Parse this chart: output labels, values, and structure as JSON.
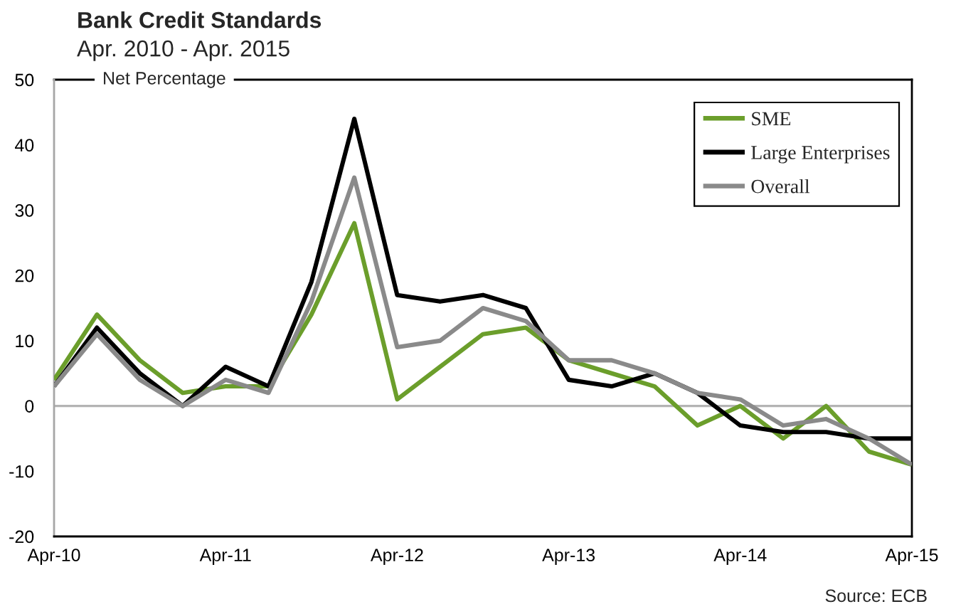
{
  "chart_data": {
    "type": "line",
    "title": "Bank Credit Standards",
    "subtitle": "Apr. 2010 - Apr. 2015",
    "ylabel": "Net Percentage",
    "annotations": [
      "Source: ECB"
    ],
    "categories": [
      "Apr-10",
      null,
      null,
      null,
      "Apr-11",
      null,
      null,
      null,
      "Apr-12",
      null,
      null,
      null,
      "Apr-13",
      null,
      null,
      null,
      "Apr-14",
      null,
      null,
      null,
      "Apr-15"
    ],
    "series": [
      {
        "name": "SME",
        "color": "#6b9e2b",
        "values": [
          4,
          14,
          7,
          2,
          3,
          3,
          14,
          28,
          1,
          6,
          11,
          12,
          7,
          5,
          3,
          -3,
          0,
          -5,
          0,
          -7,
          -9
        ]
      },
      {
        "name": "Large Enterprises",
        "color": "#000000",
        "values": [
          3,
          12,
          5,
          0,
          6,
          3,
          19,
          44,
          17,
          16,
          17,
          15,
          4,
          3,
          5,
          2,
          -3,
          -4,
          -4,
          -5,
          -5
        ]
      },
      {
        "name": "Overall",
        "color": "#8a8a8a",
        "values": [
          3,
          11,
          4,
          0,
          4,
          2,
          16,
          35,
          9,
          10,
          15,
          13,
          7,
          7,
          5,
          2,
          1,
          -3,
          -2,
          -5,
          -9
        ]
      }
    ],
    "ylim": [
      -20,
      50
    ],
    "yticks": [
      -20,
      -10,
      0,
      10,
      20,
      30,
      40,
      50
    ],
    "ref_lines": [
      {
        "axis": "y",
        "value": 0,
        "color": "#b4b4b4"
      }
    ],
    "legend": "top right",
    "grid": false,
    "line_style": "solid"
  }
}
